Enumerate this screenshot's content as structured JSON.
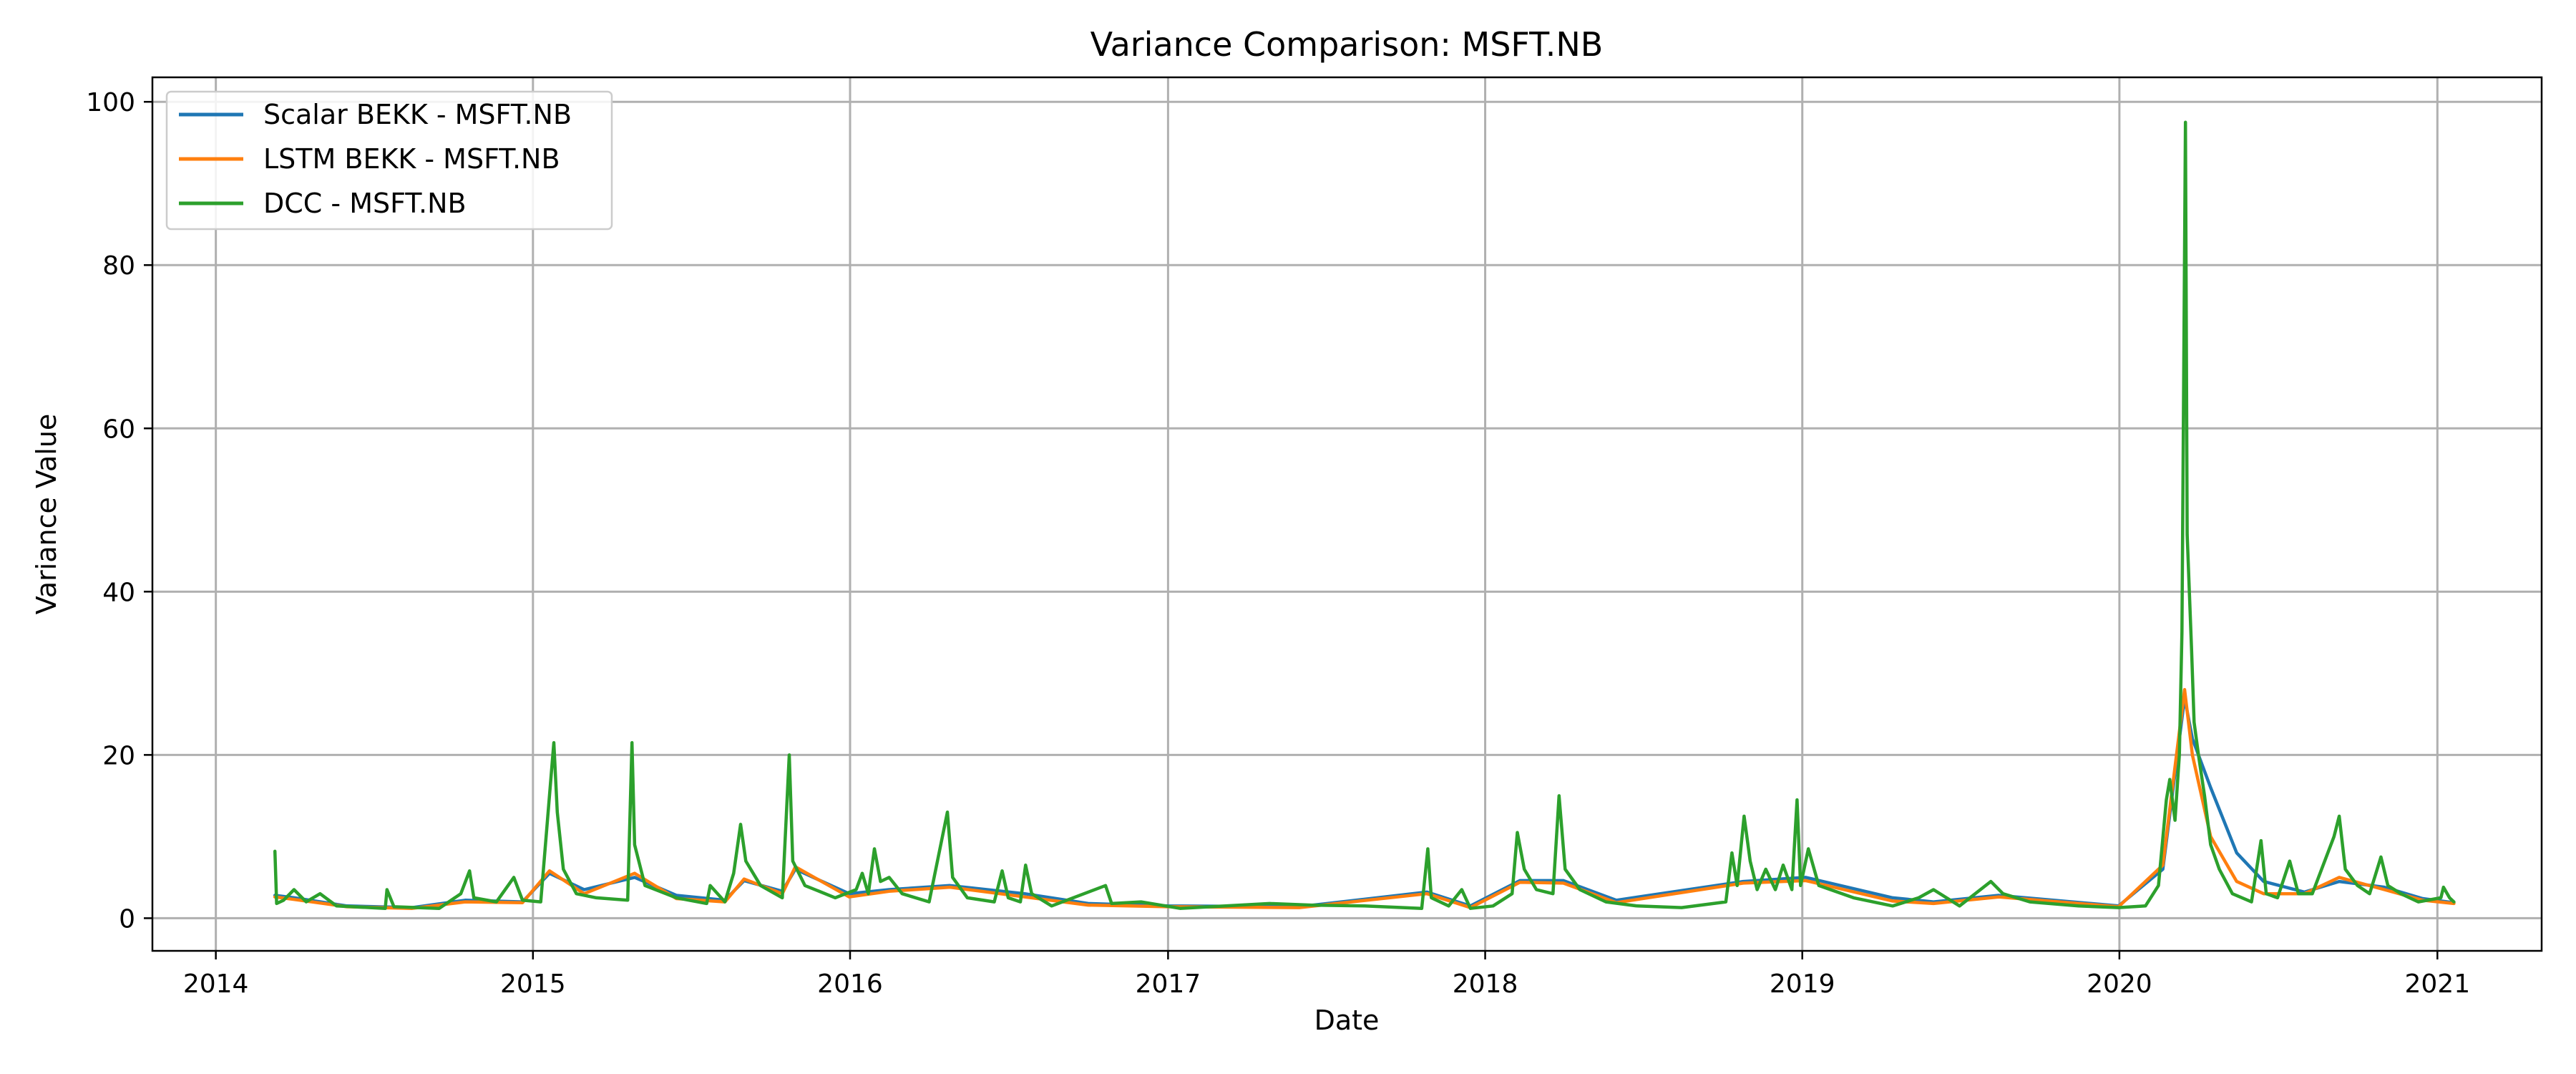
{
  "chart_data": {
    "type": "line",
    "title": "Variance Comparison: MSFT.NB",
    "xlabel": "Date",
    "ylabel": "Variance Value",
    "xlim": [
      "2013-10-20",
      "2021-05-01"
    ],
    "ylim": [
      -4,
      103
    ],
    "x_ticks": [
      {
        "label": "2014",
        "date": "2014-01-01"
      },
      {
        "label": "2015",
        "date": "2015-01-01"
      },
      {
        "label": "2016",
        "date": "2016-01-01"
      },
      {
        "label": "2017",
        "date": "2017-01-01"
      },
      {
        "label": "2018",
        "date": "2018-01-01"
      },
      {
        "label": "2019",
        "date": "2019-01-01"
      },
      {
        "label": "2020",
        "date": "2020-01-01"
      },
      {
        "label": "2021",
        "date": "2021-01-01"
      }
    ],
    "y_ticks": [
      0,
      20,
      40,
      60,
      80,
      100
    ],
    "grid": true,
    "legend_position": "upper-left",
    "series": [
      {
        "name": "Scalar BEKK - MSFT.NB",
        "color": "#1f77b4",
        "points": [
          [
            "2014-03-10",
            2.8
          ],
          [
            "2014-04-01",
            2.5
          ],
          [
            "2014-06-01",
            1.5
          ],
          [
            "2014-08-15",
            1.3
          ],
          [
            "2014-10-15",
            2.2
          ],
          [
            "2014-12-20",
            2.0
          ],
          [
            "2015-01-20",
            5.5
          ],
          [
            "2015-03-01",
            3.5
          ],
          [
            "2015-04-28",
            5.0
          ],
          [
            "2015-06-15",
            2.8
          ],
          [
            "2015-08-10",
            2.2
          ],
          [
            "2015-09-01",
            4.6
          ],
          [
            "2015-10-15",
            3.3
          ],
          [
            "2015-10-30",
            6.0
          ],
          [
            "2015-12-31",
            3.0
          ],
          [
            "2016-02-15",
            3.5
          ],
          [
            "2016-04-25",
            4.0
          ],
          [
            "2016-07-20",
            3.0
          ],
          [
            "2016-10-01",
            1.8
          ],
          [
            "2017-01-01",
            1.5
          ],
          [
            "2017-06-01",
            1.4
          ],
          [
            "2017-10-26",
            3.2
          ],
          [
            "2017-12-15",
            1.5
          ],
          [
            "2018-02-10",
            4.6
          ],
          [
            "2018-04-01",
            4.6
          ],
          [
            "2018-06-01",
            2.2
          ],
          [
            "2018-10-25",
            4.5
          ],
          [
            "2019-01-05",
            5.0
          ],
          [
            "2019-04-15",
            2.5
          ],
          [
            "2019-06-01",
            2.0
          ],
          [
            "2019-08-15",
            2.8
          ],
          [
            "2019-12-31",
            1.5
          ],
          [
            "2020-02-20",
            6.0
          ],
          [
            "2020-03-16",
            27.0
          ],
          [
            "2020-03-25",
            22.0
          ],
          [
            "2020-04-15",
            16.0
          ],
          [
            "2020-05-15",
            8.0
          ],
          [
            "2020-06-15",
            4.5
          ],
          [
            "2020-08-01",
            3.2
          ],
          [
            "2020-09-10",
            4.5
          ],
          [
            "2020-11-01",
            3.8
          ],
          [
            "2020-12-15",
            2.4
          ],
          [
            "2021-01-20",
            1.9
          ]
        ]
      },
      {
        "name": "LSTM BEKK - MSFT.NB",
        "color": "#ff7f0e",
        "points": [
          [
            "2014-03-10",
            2.6
          ],
          [
            "2014-04-01",
            2.3
          ],
          [
            "2014-06-01",
            1.4
          ],
          [
            "2014-08-15",
            1.2
          ],
          [
            "2014-10-15",
            2.0
          ],
          [
            "2014-12-20",
            1.9
          ],
          [
            "2015-01-20",
            5.8
          ],
          [
            "2015-03-01",
            3.0
          ],
          [
            "2015-04-28",
            5.5
          ],
          [
            "2015-06-15",
            2.4
          ],
          [
            "2015-08-10",
            2.0
          ],
          [
            "2015-09-01",
            4.8
          ],
          [
            "2015-10-15",
            3.0
          ],
          [
            "2015-10-30",
            6.3
          ],
          [
            "2015-12-31",
            2.6
          ],
          [
            "2016-02-15",
            3.3
          ],
          [
            "2016-04-25",
            3.8
          ],
          [
            "2016-07-20",
            2.6
          ],
          [
            "2016-10-01",
            1.6
          ],
          [
            "2017-01-01",
            1.4
          ],
          [
            "2017-06-01",
            1.3
          ],
          [
            "2017-10-26",
            3.0
          ],
          [
            "2017-12-15",
            1.3
          ],
          [
            "2018-02-10",
            4.4
          ],
          [
            "2018-04-01",
            4.3
          ],
          [
            "2018-06-01",
            1.9
          ],
          [
            "2018-10-25",
            4.3
          ],
          [
            "2019-01-05",
            4.6
          ],
          [
            "2019-04-15",
            2.1
          ],
          [
            "2019-06-01",
            1.8
          ],
          [
            "2019-08-15",
            2.6
          ],
          [
            "2019-12-31",
            1.4
          ],
          [
            "2020-02-20",
            6.5
          ],
          [
            "2020-03-16",
            28.0
          ],
          [
            "2020-03-25",
            20.0
          ],
          [
            "2020-04-15",
            10.0
          ],
          [
            "2020-05-15",
            4.5
          ],
          [
            "2020-06-15",
            3.0
          ],
          [
            "2020-08-01",
            3.0
          ],
          [
            "2020-09-10",
            5.0
          ],
          [
            "2020-11-01",
            3.5
          ],
          [
            "2020-12-15",
            2.2
          ],
          [
            "2021-01-20",
            1.8
          ]
        ]
      },
      {
        "name": "DCC - MSFT.NB",
        "color": "#2ca02c",
        "points": [
          [
            "2014-03-10",
            8.2
          ],
          [
            "2014-03-12",
            1.8
          ],
          [
            "2014-03-20",
            2.2
          ],
          [
            "2014-04-01",
            3.5
          ],
          [
            "2014-04-15",
            2.0
          ],
          [
            "2014-05-01",
            3.0
          ],
          [
            "2014-05-20",
            1.5
          ],
          [
            "2014-07-15",
            1.2
          ],
          [
            "2014-07-17",
            3.5
          ],
          [
            "2014-07-25",
            1.4
          ],
          [
            "2014-09-15",
            1.2
          ],
          [
            "2014-10-10",
            3.0
          ],
          [
            "2014-10-20",
            5.8
          ],
          [
            "2014-10-25",
            2.5
          ],
          [
            "2014-11-20",
            2.0
          ],
          [
            "2014-12-10",
            5.0
          ],
          [
            "2014-12-20",
            2.2
          ],
          [
            "2015-01-10",
            2.0
          ],
          [
            "2015-01-25",
            21.5
          ],
          [
            "2015-01-29",
            13.0
          ],
          [
            "2015-02-05",
            6.0
          ],
          [
            "2015-02-20",
            3.0
          ],
          [
            "2015-03-15",
            2.5
          ],
          [
            "2015-04-20",
            2.2
          ],
          [
            "2015-04-25",
            21.5
          ],
          [
            "2015-04-28",
            9.0
          ],
          [
            "2015-05-10",
            4.0
          ],
          [
            "2015-06-15",
            2.5
          ],
          [
            "2015-07-20",
            1.8
          ],
          [
            "2015-07-24",
            4.0
          ],
          [
            "2015-08-10",
            2.0
          ],
          [
            "2015-08-20",
            5.5
          ],
          [
            "2015-08-28",
            11.5
          ],
          [
            "2015-09-03",
            7.0
          ],
          [
            "2015-09-20",
            4.0
          ],
          [
            "2015-10-15",
            2.5
          ],
          [
            "2015-10-23",
            20.0
          ],
          [
            "2015-10-27",
            7.0
          ],
          [
            "2015-11-10",
            4.0
          ],
          [
            "2015-12-15",
            2.5
          ],
          [
            "2016-01-08",
            3.5
          ],
          [
            "2016-01-15",
            5.5
          ],
          [
            "2016-01-22",
            3.0
          ],
          [
            "2016-01-29",
            8.5
          ],
          [
            "2016-02-05",
            4.5
          ],
          [
            "2016-02-15",
            5.0
          ],
          [
            "2016-03-01",
            3.0
          ],
          [
            "2016-04-01",
            2.0
          ],
          [
            "2016-04-22",
            13.0
          ],
          [
            "2016-04-28",
            5.0
          ],
          [
            "2016-05-15",
            2.5
          ],
          [
            "2016-06-15",
            2.0
          ],
          [
            "2016-06-24",
            5.8
          ],
          [
            "2016-07-01",
            2.5
          ],
          [
            "2016-07-15",
            2.0
          ],
          [
            "2016-07-21",
            6.5
          ],
          [
            "2016-07-28",
            3.0
          ],
          [
            "2016-08-20",
            1.5
          ],
          [
            "2016-10-21",
            4.0
          ],
          [
            "2016-10-28",
            1.8
          ],
          [
            "2016-12-01",
            2.0
          ],
          [
            "2017-01-15",
            1.2
          ],
          [
            "2017-04-28",
            1.8
          ],
          [
            "2017-06-15",
            1.6
          ],
          [
            "2017-08-15",
            1.5
          ],
          [
            "2017-10-20",
            1.2
          ],
          [
            "2017-10-27",
            8.5
          ],
          [
            "2017-10-31",
            2.5
          ],
          [
            "2017-11-20",
            1.5
          ],
          [
            "2017-12-05",
            3.5
          ],
          [
            "2017-12-15",
            1.2
          ],
          [
            "2018-01-10",
            1.5
          ],
          [
            "2018-02-01",
            3.0
          ],
          [
            "2018-02-07",
            10.5
          ],
          [
            "2018-02-15",
            6.0
          ],
          [
            "2018-03-01",
            3.5
          ],
          [
            "2018-03-20",
            3.0
          ],
          [
            "2018-03-27",
            15.0
          ],
          [
            "2018-04-03",
            6.0
          ],
          [
            "2018-04-20",
            3.5
          ],
          [
            "2018-05-20",
            2.0
          ],
          [
            "2018-06-25",
            1.5
          ],
          [
            "2018-08-15",
            1.3
          ],
          [
            "2018-10-05",
            2.0
          ],
          [
            "2018-10-12",
            8.0
          ],
          [
            "2018-10-18",
            4.0
          ],
          [
            "2018-10-26",
            12.5
          ],
          [
            "2018-11-02",
            7.0
          ],
          [
            "2018-11-10",
            3.5
          ],
          [
            "2018-11-20",
            6.0
          ],
          [
            "2018-12-01",
            3.5
          ],
          [
            "2018-12-10",
            6.5
          ],
          [
            "2018-12-20",
            3.5
          ],
          [
            "2018-12-26",
            14.5
          ],
          [
            "2018-12-30",
            4.0
          ],
          [
            "2019-01-08",
            8.5
          ],
          [
            "2019-01-20",
            4.0
          ],
          [
            "2019-03-01",
            2.5
          ],
          [
            "2019-04-15",
            1.5
          ],
          [
            "2019-05-15",
            2.5
          ],
          [
            "2019-06-01",
            3.5
          ],
          [
            "2019-07-01",
            1.5
          ],
          [
            "2019-08-06",
            4.5
          ],
          [
            "2019-08-20",
            3.0
          ],
          [
            "2019-09-20",
            2.0
          ],
          [
            "2019-11-15",
            1.5
          ],
          [
            "2019-12-31",
            1.3
          ],
          [
            "2020-01-31",
            1.5
          ],
          [
            "2020-02-15",
            4.0
          ],
          [
            "2020-02-24",
            14.5
          ],
          [
            "2020-02-28",
            17.0
          ],
          [
            "2020-03-05",
            12.0
          ],
          [
            "2020-03-10",
            20.0
          ],
          [
            "2020-03-13",
            35.0
          ],
          [
            "2020-03-17",
            97.5
          ],
          [
            "2020-03-19",
            47.0
          ],
          [
            "2020-03-24",
            33.0
          ],
          [
            "2020-03-27",
            24.0
          ],
          [
            "2020-04-01",
            20.0
          ],
          [
            "2020-04-08",
            15.0
          ],
          [
            "2020-04-15",
            9.0
          ],
          [
            "2020-04-25",
            6.0
          ],
          [
            "2020-05-10",
            3.0
          ],
          [
            "2020-06-01",
            2.0
          ],
          [
            "2020-06-12",
            9.5
          ],
          [
            "2020-06-18",
            3.0
          ],
          [
            "2020-07-01",
            2.5
          ],
          [
            "2020-07-15",
            7.0
          ],
          [
            "2020-07-25",
            3.0
          ],
          [
            "2020-08-10",
            3.0
          ],
          [
            "2020-09-04",
            10.0
          ],
          [
            "2020-09-10",
            12.5
          ],
          [
            "2020-09-17",
            6.0
          ],
          [
            "2020-10-01",
            4.0
          ],
          [
            "2020-10-15",
            3.0
          ],
          [
            "2020-10-28",
            7.5
          ],
          [
            "2020-11-05",
            4.0
          ],
          [
            "2020-11-20",
            3.0
          ],
          [
            "2020-12-10",
            2.0
          ],
          [
            "2021-01-05",
            2.5
          ],
          [
            "2021-01-08",
            3.8
          ],
          [
            "2021-01-15",
            2.5
          ],
          [
            "2021-01-20",
            2.0
          ]
        ]
      }
    ]
  }
}
